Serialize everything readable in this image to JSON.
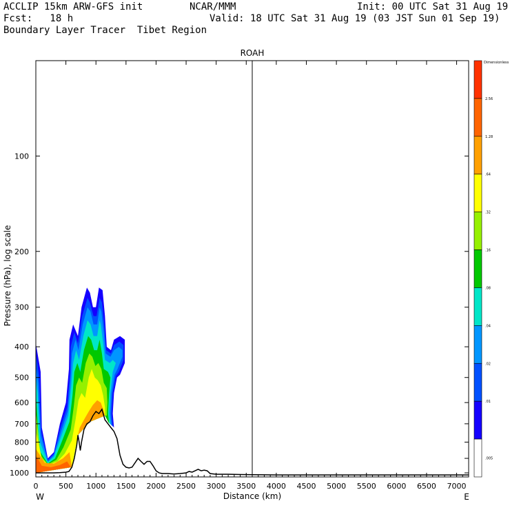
{
  "header": {
    "model": "ACCLIP 15km ARW-GFS init",
    "org": "NCAR/MMM",
    "init": "Init: 00 UTC Sat 31 Aug 19",
    "fcst": "Fcst:   18 h",
    "valid": "Valid: 18 UTC Sat 31 Aug 19 (03 JST Sun 01 Sep 19)",
    "subtitle": "Boundary Layer Tracer  Tibet Region"
  },
  "chart_data": {
    "type": "cross-section",
    "title": "ROAH",
    "xlabel": "Distance (km)",
    "ylabel": "Pressure (hPa), log scale",
    "xlim": [
      0,
      7200
    ],
    "ylim": [
      1030,
      50
    ],
    "y_scale": "log",
    "x_ticks": [
      0,
      500,
      1000,
      1500,
      2000,
      2500,
      3000,
      3500,
      4000,
      4500,
      5000,
      5500,
      6000,
      6500,
      7000
    ],
    "y_ticks": [
      100,
      200,
      300,
      400,
      500,
      600,
      700,
      800,
      900,
      1000
    ],
    "left_end_label": "W",
    "right_end_label": "E",
    "marker_line_x": 3600,
    "colorbar": {
      "units": "Dimensionless",
      "labels": [
        ".005",
        ".01",
        ".02",
        ".04",
        ".08",
        ".16",
        ".32",
        ".64",
        "1.28",
        "2.56"
      ],
      "colors": [
        "#ffffff",
        "#1400ff",
        "#0050ff",
        "#0096ff",
        "#00e6c8",
        "#00c800",
        "#96f000",
        "#ffff00",
        "#ffa000",
        "#ff6400",
        "#ff3200"
      ]
    },
    "terrain": [
      [
        0,
        1000
      ],
      [
        100,
        1000
      ],
      [
        200,
        1000
      ],
      [
        300,
        1000
      ],
      [
        400,
        998
      ],
      [
        500,
        995
      ],
      [
        550,
        990
      ],
      [
        600,
        960
      ],
      [
        640,
        900
      ],
      [
        680,
        820
      ],
      [
        700,
        760
      ],
      [
        720,
        800
      ],
      [
        740,
        850
      ],
      [
        760,
        800
      ],
      [
        800,
        730
      ],
      [
        850,
        700
      ],
      [
        900,
        690
      ],
      [
        950,
        660
      ],
      [
        1000,
        640
      ],
      [
        1050,
        650
      ],
      [
        1100,
        630
      ],
      [
        1150,
        680
      ],
      [
        1200,
        700
      ],
      [
        1250,
        720
      ],
      [
        1300,
        740
      ],
      [
        1350,
        780
      ],
      [
        1400,
        880
      ],
      [
        1450,
        940
      ],
      [
        1500,
        960
      ],
      [
        1550,
        965
      ],
      [
        1600,
        960
      ],
      [
        1650,
        930
      ],
      [
        1700,
        900
      ],
      [
        1750,
        920
      ],
      [
        1800,
        940
      ],
      [
        1850,
        920
      ],
      [
        1900,
        920
      ],
      [
        1950,
        950
      ],
      [
        2000,
        985
      ],
      [
        2050,
        1000
      ],
      [
        2100,
        1005
      ],
      [
        2200,
        1005
      ],
      [
        2300,
        1008
      ],
      [
        2400,
        1005
      ],
      [
        2500,
        1000
      ],
      [
        2550,
        990
      ],
      [
        2600,
        995
      ],
      [
        2650,
        985
      ],
      [
        2700,
        975
      ],
      [
        2750,
        985
      ],
      [
        2800,
        980
      ],
      [
        2850,
        985
      ],
      [
        2900,
        1005
      ],
      [
        3000,
        1010
      ],
      [
        3200,
        1010
      ],
      [
        3400,
        1012
      ],
      [
        3600,
        1013
      ],
      [
        4000,
        1015
      ],
      [
        5000,
        1015
      ],
      [
        6000,
        1015
      ],
      [
        7200,
        1015
      ]
    ],
    "contour_regions": [
      {
        "level": ".01",
        "color": "#1400ff",
        "polygon": [
          [
            0,
            390
          ],
          [
            80,
            480
          ],
          [
            100,
            720
          ],
          [
            200,
            900
          ],
          [
            300,
            860
          ],
          [
            400,
            700
          ],
          [
            500,
            600
          ],
          [
            550,
            470
          ],
          [
            560,
            380
          ],
          [
            620,
            340
          ],
          [
            700,
            370
          ],
          [
            760,
            300
          ],
          [
            850,
            260
          ],
          [
            900,
            270
          ],
          [
            950,
            300
          ],
          [
            1000,
            300
          ],
          [
            1050,
            260
          ],
          [
            1110,
            265
          ],
          [
            1150,
            320
          ],
          [
            1180,
            400
          ],
          [
            1250,
            410
          ],
          [
            1300,
            380
          ],
          [
            1400,
            370
          ],
          [
            1480,
            380
          ],
          [
            1480,
            450
          ],
          [
            1400,
            490
          ],
          [
            1350,
            500
          ],
          [
            1300,
            560
          ],
          [
            1280,
            650
          ],
          [
            1300,
            720
          ],
          [
            1150,
            660
          ],
          [
            900,
            690
          ],
          [
            700,
            760
          ],
          [
            600,
            960
          ],
          [
            0,
            1000
          ]
        ]
      },
      {
        "level": ".02",
        "color": "#0050ff",
        "polygon": [
          [
            0,
            420
          ],
          [
            60,
            500
          ],
          [
            90,
            740
          ],
          [
            200,
            910
          ],
          [
            300,
            870
          ],
          [
            410,
            720
          ],
          [
            520,
            620
          ],
          [
            570,
            480
          ],
          [
            580,
            400
          ],
          [
            640,
            360
          ],
          [
            700,
            390
          ],
          [
            770,
            320
          ],
          [
            860,
            280
          ],
          [
            900,
            290
          ],
          [
            960,
            320
          ],
          [
            1010,
            320
          ],
          [
            1060,
            280
          ],
          [
            1100,
            290
          ],
          [
            1140,
            340
          ],
          [
            1170,
            410
          ],
          [
            1250,
            420
          ],
          [
            1300,
            395
          ],
          [
            1390,
            385
          ],
          [
            1460,
            395
          ],
          [
            1460,
            440
          ],
          [
            1380,
            480
          ],
          [
            1330,
            495
          ],
          [
            1280,
            560
          ],
          [
            1260,
            650
          ],
          [
            1280,
            715
          ],
          [
            1150,
            660
          ],
          [
            900,
            690
          ],
          [
            700,
            760
          ],
          [
            600,
            960
          ],
          [
            0,
            1000
          ]
        ]
      },
      {
        "level": ".04",
        "color": "#0096ff",
        "polygon": [
          [
            0,
            460
          ],
          [
            40,
            520
          ],
          [
            80,
            760
          ],
          [
            200,
            920
          ],
          [
            300,
            880
          ],
          [
            420,
            740
          ],
          [
            530,
            640
          ],
          [
            580,
            500
          ],
          [
            600,
            420
          ],
          [
            660,
            380
          ],
          [
            710,
            410
          ],
          [
            780,
            340
          ],
          [
            860,
            300
          ],
          [
            910,
            310
          ],
          [
            960,
            340
          ],
          [
            1020,
            340
          ],
          [
            1060,
            300
          ],
          [
            1090,
            310
          ],
          [
            1130,
            360
          ],
          [
            1160,
            420
          ],
          [
            1240,
            430
          ],
          [
            1300,
            410
          ],
          [
            1380,
            400
          ],
          [
            1440,
            410
          ],
          [
            1440,
            430
          ],
          [
            1360,
            470
          ],
          [
            1310,
            490
          ],
          [
            1260,
            560
          ],
          [
            1240,
            650
          ],
          [
            1260,
            710
          ],
          [
            1150,
            660
          ],
          [
            900,
            690
          ],
          [
            700,
            760
          ],
          [
            600,
            960
          ],
          [
            0,
            1000
          ]
        ]
      },
      {
        "level": ".08",
        "color": "#00e6c8",
        "polygon": [
          [
            0,
            500
          ],
          [
            30,
            560
          ],
          [
            70,
            800
          ],
          [
            200,
            925
          ],
          [
            300,
            890
          ],
          [
            430,
            760
          ],
          [
            540,
            660
          ],
          [
            590,
            530
          ],
          [
            620,
            450
          ],
          [
            670,
            410
          ],
          [
            720,
            440
          ],
          [
            790,
            370
          ],
          [
            860,
            330
          ],
          [
            910,
            340
          ],
          [
            960,
            370
          ],
          [
            1020,
            370
          ],
          [
            1060,
            330
          ],
          [
            1080,
            340
          ],
          [
            1120,
            390
          ],
          [
            1150,
            440
          ],
          [
            1230,
            450
          ],
          [
            1280,
            440
          ],
          [
            1330,
            450
          ],
          [
            1280,
            480
          ],
          [
            1240,
            560
          ],
          [
            1220,
            650
          ],
          [
            1240,
            705
          ],
          [
            1150,
            660
          ],
          [
            900,
            690
          ],
          [
            700,
            760
          ],
          [
            600,
            960
          ],
          [
            0,
            1000
          ]
        ]
      },
      {
        "level": ".16",
        "color": "#00c800",
        "polygon": [
          [
            0,
            560
          ],
          [
            60,
            850
          ],
          [
            200,
            935
          ],
          [
            320,
            900
          ],
          [
            440,
            790
          ],
          [
            560,
            690
          ],
          [
            610,
            570
          ],
          [
            640,
            480
          ],
          [
            690,
            450
          ],
          [
            740,
            480
          ],
          [
            800,
            410
          ],
          [
            870,
            370
          ],
          [
            920,
            380
          ],
          [
            970,
            410
          ],
          [
            1020,
            410
          ],
          [
            1060,
            380
          ],
          [
            1100,
            420
          ],
          [
            1130,
            470
          ],
          [
            1200,
            480
          ],
          [
            1240,
            500
          ],
          [
            1220,
            560
          ],
          [
            1200,
            650
          ],
          [
            1220,
            700
          ],
          [
            1150,
            660
          ],
          [
            900,
            690
          ],
          [
            700,
            760
          ],
          [
            600,
            960
          ],
          [
            0,
            1000
          ]
        ]
      },
      {
        "level": ".32",
        "color": "#96f000",
        "polygon": [
          [
            0,
            640
          ],
          [
            80,
            880
          ],
          [
            200,
            940
          ],
          [
            340,
            910
          ],
          [
            460,
            830
          ],
          [
            580,
            730
          ],
          [
            630,
            620
          ],
          [
            670,
            530
          ],
          [
            720,
            500
          ],
          [
            770,
            520
          ],
          [
            830,
            450
          ],
          [
            890,
            420
          ],
          [
            940,
            430
          ],
          [
            990,
            460
          ],
          [
            1040,
            450
          ],
          [
            1090,
            470
          ],
          [
            1130,
            520
          ],
          [
            1180,
            540
          ],
          [
            1190,
            600
          ],
          [
            1180,
            660
          ],
          [
            1150,
            660
          ],
          [
            900,
            690
          ],
          [
            700,
            760
          ],
          [
            600,
            960
          ],
          [
            0,
            1000
          ]
        ]
      },
      {
        "level": ".64",
        "color": "#ffff00",
        "polygon": [
          [
            0,
            740
          ],
          [
            100,
            900
          ],
          [
            200,
            945
          ],
          [
            360,
            920
          ],
          [
            480,
            870
          ],
          [
            600,
            790
          ],
          [
            660,
            680
          ],
          [
            710,
            590
          ],
          [
            760,
            560
          ],
          [
            820,
            580
          ],
          [
            880,
            500
          ],
          [
            930,
            470
          ],
          [
            980,
            500
          ],
          [
            1030,
            510
          ],
          [
            1080,
            530
          ],
          [
            1120,
            570
          ],
          [
            1150,
            620
          ],
          [
            1150,
            660
          ],
          [
            900,
            690
          ],
          [
            700,
            760
          ],
          [
            600,
            960
          ],
          [
            0,
            1000
          ]
        ]
      },
      {
        "level": "1.28",
        "color": "#ffa000",
        "polygon": [
          [
            0,
            840
          ],
          [
            150,
            930
          ],
          [
            300,
            935
          ],
          [
            450,
            900
          ],
          [
            560,
            860
          ],
          [
            600,
            960
          ],
          [
            0,
            1000
          ]
        ]
      },
      {
        "level": "1.28b",
        "color": "#ffa000",
        "polygon": [
          [
            730,
            720
          ],
          [
            800,
            680
          ],
          [
            880,
            640
          ],
          [
            950,
            610
          ],
          [
            1020,
            590
          ],
          [
            1080,
            600
          ],
          [
            1120,
            630
          ],
          [
            1150,
            660
          ],
          [
            900,
            690
          ],
          [
            700,
            760
          ]
        ]
      },
      {
        "level": "2.56",
        "color": "#ff6400",
        "polygon": [
          [
            0,
            880
          ],
          [
            100,
            950
          ],
          [
            250,
            960
          ],
          [
            400,
            945
          ],
          [
            520,
            920
          ],
          [
            580,
            960
          ],
          [
            0,
            1000
          ]
        ]
      }
    ]
  }
}
